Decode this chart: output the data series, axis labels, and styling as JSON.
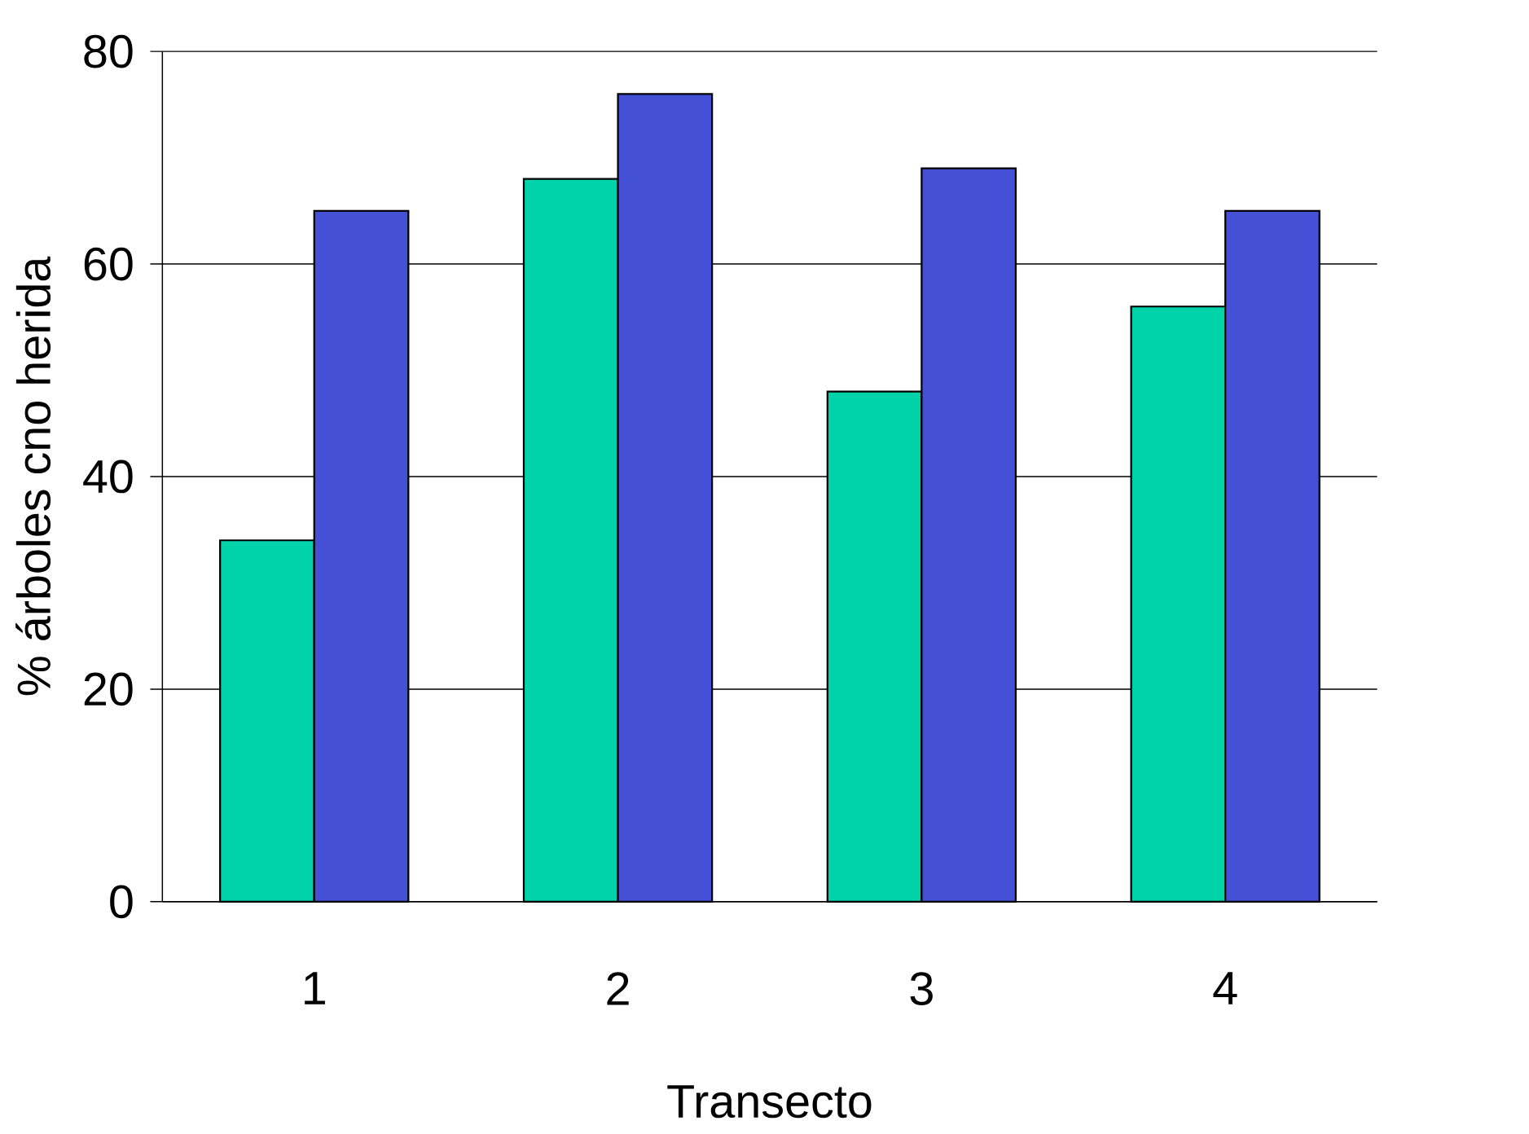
{
  "chart_data": {
    "type": "bar",
    "xlabel": "Transecto",
    "ylabel": "% árboles cno herida",
    "categories": [
      "1",
      "2",
      "3",
      "4"
    ],
    "series": [
      {
        "color": "#00d3aa",
        "values": [
          34,
          68,
          48,
          56
        ]
      },
      {
        "color": "#4450d6",
        "values": [
          65,
          76,
          69,
          65
        ]
      }
    ],
    "ylim": [
      0,
      80
    ],
    "yticks": [
      0,
      20,
      40,
      60,
      80
    ],
    "grid": "y"
  }
}
